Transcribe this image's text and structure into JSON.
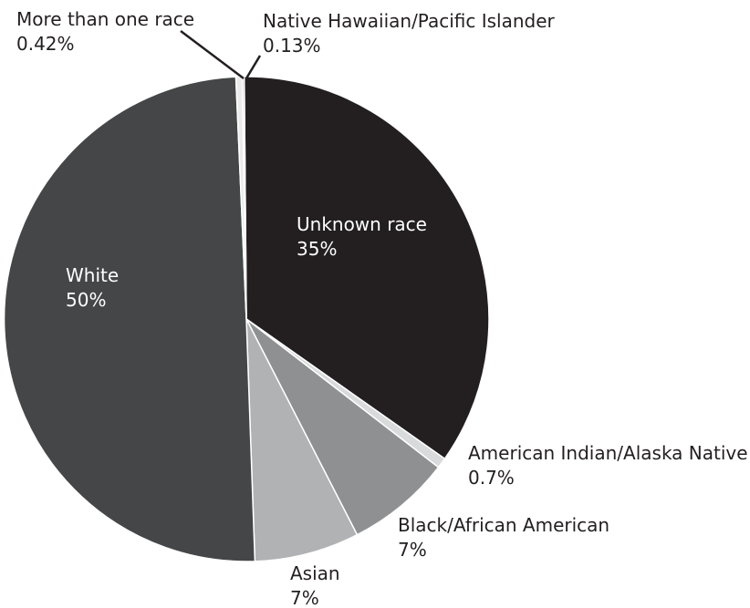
{
  "chart_data": {
    "type": "pie",
    "title": "",
    "start_angle_deg": -0.5,
    "direction": "clockwise",
    "slices": [
      {
        "label": "Unknown race",
        "value_label": "35%",
        "value": 35,
        "color": "#231f20",
        "text_color": "#ffffff"
      },
      {
        "label": "American Indian/Alaska Native",
        "value_label": "0.7%",
        "value": 0.7,
        "color": "#d9dadb",
        "text_color": "#231f20"
      },
      {
        "label": "Black/African American",
        "value_label": "7%",
        "value": 7,
        "color": "#8f9092",
        "text_color": "#231f20"
      },
      {
        "label": "Asian",
        "value_label": "7%",
        "value": 7,
        "color": "#b1b2b4",
        "text_color": "#231f20"
      },
      {
        "label": "White",
        "value_label": "50%",
        "value": 50,
        "color": "#454648",
        "text_color": "#ffffff"
      },
      {
        "label": "More than one race",
        "value_label": "0.42%",
        "value": 0.42,
        "color": "#eaeaeb",
        "text_color": "#231f20"
      },
      {
        "label": "Native Hawaiian/Pacific Islander",
        "value_label": "0.13%",
        "value": 0.13,
        "color": "#c4c5c7",
        "text_color": "#231f20"
      }
    ]
  }
}
